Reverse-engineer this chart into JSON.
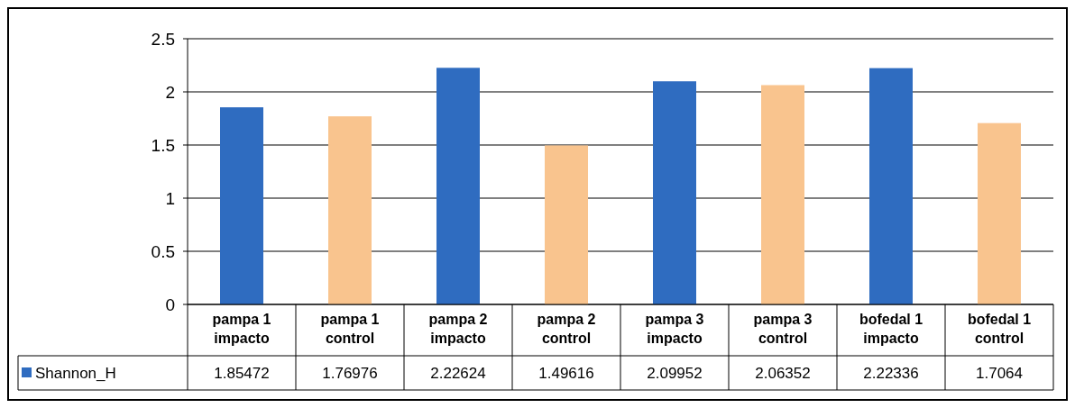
{
  "chart_data": {
    "type": "bar",
    "categories": [
      "pampa 1 impacto",
      "pampa 1 control",
      "pampa 2 impacto",
      "pampa 2 control",
      "pampa 3 impacto",
      "pampa 3 control",
      "bofedal 1 impacto",
      "bofedal 1 control"
    ],
    "series": [
      {
        "name": "Shannon_H",
        "color": "#2f6cc0",
        "colors": [
          "#2f6cc0",
          "#f9c48e",
          "#2f6cc0",
          "#f9c48e",
          "#2f6cc0",
          "#f9c48e",
          "#2f6cc0",
          "#f9c48e"
        ],
        "values": [
          1.85472,
          1.76976,
          2.22624,
          1.49616,
          2.09952,
          2.06352,
          2.22336,
          1.7064
        ]
      }
    ],
    "ylim": [
      0,
      2.5
    ],
    "yticks": [
      {
        "value": 0,
        "label": "0"
      },
      {
        "value": 0.5,
        "label": "0.5"
      },
      {
        "value": 1,
        "label": "1"
      },
      {
        "value": 1.5,
        "label": "1.5"
      },
      {
        "value": 2,
        "label": "2"
      },
      {
        "value": 2.5,
        "label": "2.5"
      }
    ],
    "grid": "y",
    "legend": "bottom left",
    "data_labels": true
  }
}
